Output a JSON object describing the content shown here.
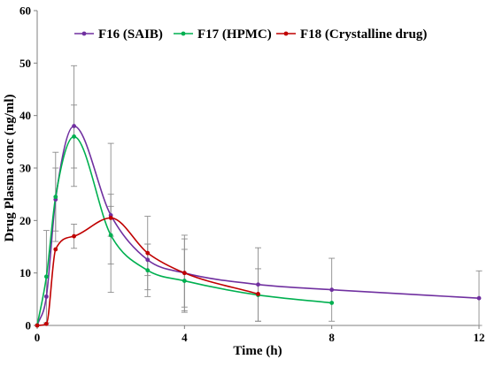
{
  "chart_data": {
    "type": "line",
    "title": "",
    "xlabel": "Time (h)",
    "ylabel": "Drug Plasma conc (ng/ml)",
    "xlim": [
      0,
      12
    ],
    "ylim": [
      0,
      60
    ],
    "x_ticks": [
      0,
      4,
      8,
      12
    ],
    "y_ticks": [
      0,
      10,
      20,
      30,
      40,
      50,
      60
    ],
    "grid": false,
    "legend_position": "top",
    "series": [
      {
        "name": "F16 (SAIB)",
        "color": "#7030a0",
        "x": [
          0,
          0.25,
          0.5,
          1,
          2,
          3,
          4,
          6,
          8,
          12
        ],
        "y": [
          0,
          5.5,
          24,
          38,
          21,
          12.5,
          10,
          7.8,
          6.8,
          5.2
        ],
        "err": [
          0,
          0,
          6,
          11.5,
          4,
          3,
          6.5,
          7,
          6,
          5.2
        ]
      },
      {
        "name": "F17 (HPMC)",
        "color": "#00b050",
        "x": [
          0,
          0.25,
          0.5,
          1,
          2,
          3,
          4,
          6,
          8
        ],
        "y": [
          0,
          9.3,
          24.5,
          36,
          17.2,
          10.5,
          8.5,
          5.8,
          4.3
        ],
        "err": [
          0,
          8.8,
          8.5,
          6,
          5.5,
          5,
          6,
          5,
          0
        ]
      },
      {
        "name": "F18 (Crystalline drug)",
        "color": "#c00000",
        "x": [
          0,
          0.25,
          0.5,
          1,
          2,
          3,
          4,
          6
        ],
        "y": [
          0,
          0.3,
          14.5,
          17,
          20.5,
          13.8,
          10,
          6
        ],
        "err": [
          0,
          0,
          0,
          2.3,
          14.2,
          7,
          7.2,
          0
        ]
      }
    ]
  }
}
